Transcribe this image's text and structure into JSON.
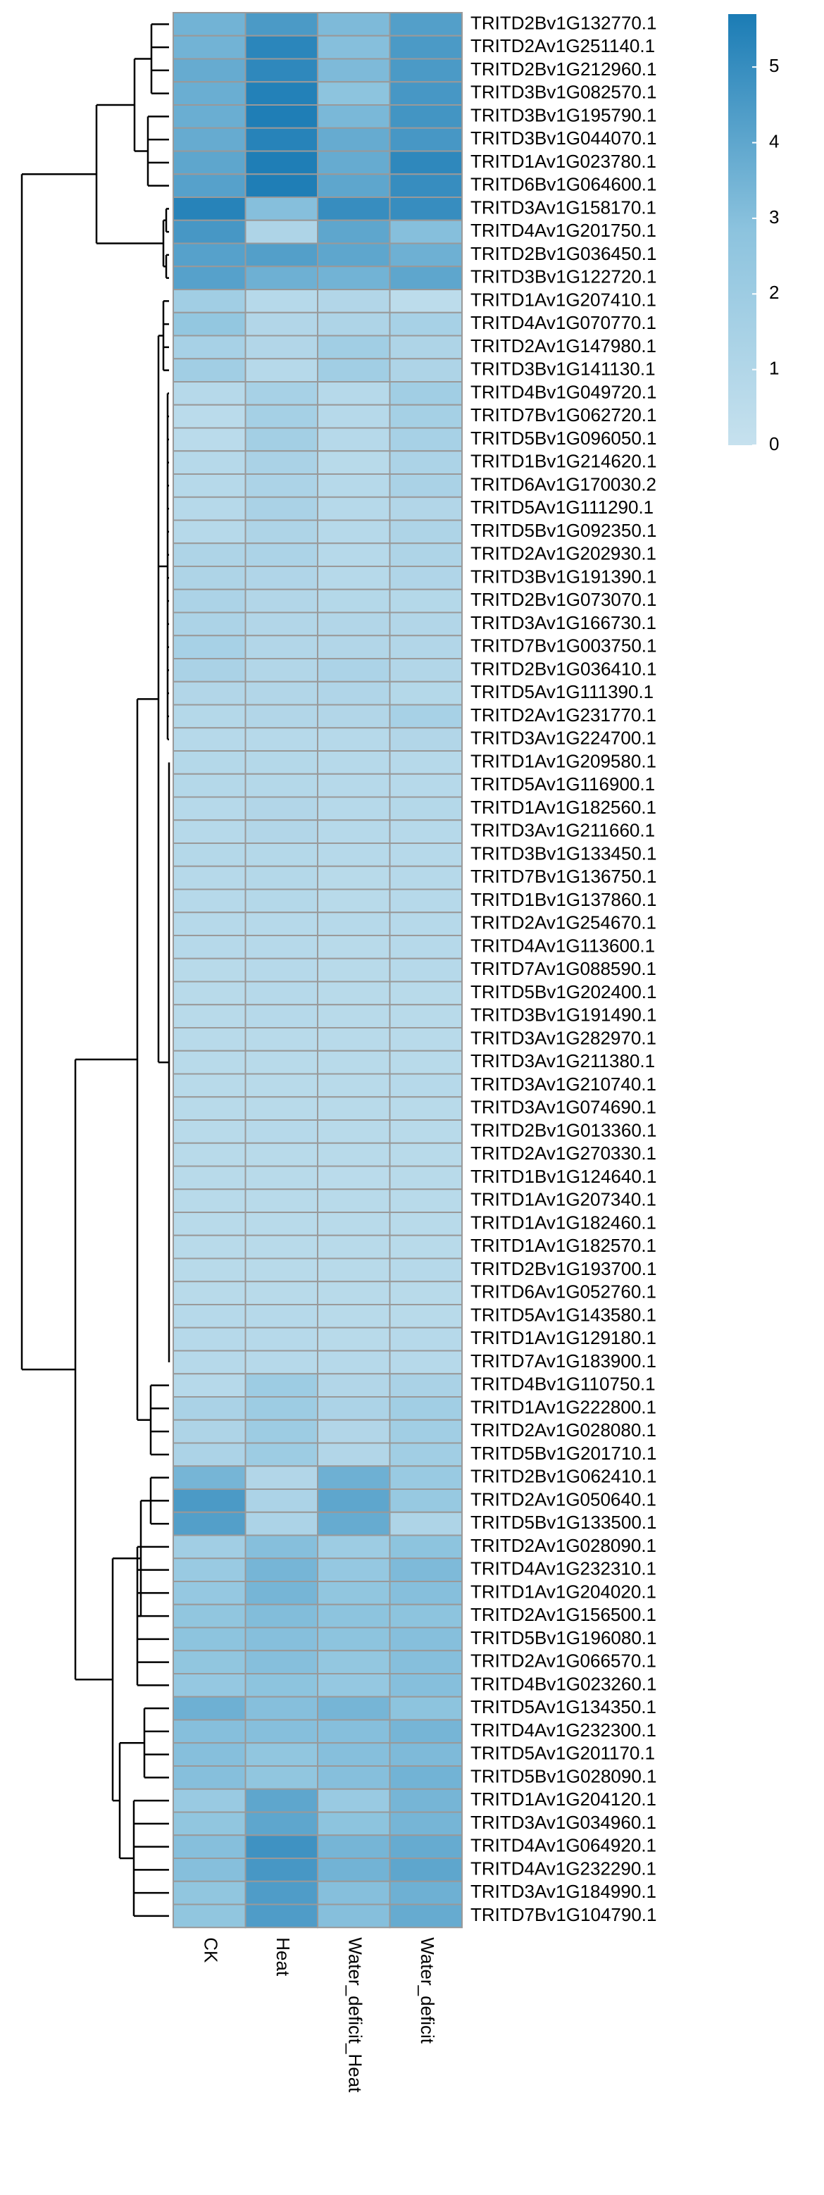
{
  "chart_data": {
    "type": "heatmap",
    "categories": [
      "CK",
      "Heat",
      "Water_deficit_Heat",
      "Water_deficit"
    ],
    "rows": [
      "TRITD2Bv1G132770.1",
      "TRITD2Av1G251140.1",
      "TRITD2Bv1G212960.1",
      "TRITD3Bv1G082570.1",
      "TRITD3Bv1G195790.1",
      "TRITD3Bv1G044070.1",
      "TRITD1Av1G023780.1",
      "TRITD6Bv1G064600.1",
      "TRITD3Av1G158170.1",
      "TRITD4Av1G201750.1",
      "TRITD2Bv1G036450.1",
      "TRITD3Bv1G122720.1",
      "TRITD1Av1G207410.1",
      "TRITD4Av1G070770.1",
      "TRITD2Av1G147980.1",
      "TRITD3Bv1G141130.1",
      "TRITD4Bv1G049720.1",
      "TRITD7Bv1G062720.1",
      "TRITD5Bv1G096050.1",
      "TRITD1Bv1G214620.1",
      "TRITD6Av1G170030.2",
      "TRITD5Av1G111290.1",
      "TRITD5Bv1G092350.1",
      "TRITD2Av1G202930.1",
      "TRITD3Bv1G191390.1",
      "TRITD2Bv1G073070.1",
      "TRITD3Av1G166730.1",
      "TRITD7Bv1G003750.1",
      "TRITD2Bv1G036410.1",
      "TRITD5Av1G111390.1",
      "TRITD2Av1G231770.1",
      "TRITD3Av1G224700.1",
      "TRITD1Av1G209580.1",
      "TRITD5Av1G116900.1",
      "TRITD1Av1G182560.1",
      "TRITD3Av1G211660.1",
      "TRITD3Bv1G133450.1",
      "TRITD7Bv1G136750.1",
      "TRITD1Bv1G137860.1",
      "TRITD2Av1G254670.1",
      "TRITD4Av1G113600.1",
      "TRITD7Av1G088590.1",
      "TRITD5Bv1G202400.1",
      "TRITD3Bv1G191490.1",
      "TRITD3Av1G282970.1",
      "TRITD3Av1G211380.1",
      "TRITD3Av1G210740.1",
      "TRITD3Av1G074690.1",
      "TRITD2Bv1G013360.1",
      "TRITD2Av1G270330.1",
      "TRITD1Bv1G124640.1",
      "TRITD1Av1G207340.1",
      "TRITD1Av1G182460.1",
      "TRITD1Av1G182570.1",
      "TRITD2Bv1G193700.1",
      "TRITD6Av1G052760.1",
      "TRITD5Av1G143580.1",
      "TRITD1Av1G129180.1",
      "TRITD7Av1G183900.1",
      "TRITD4Bv1G110750.1",
      "TRITD1Av1G222800.1",
      "TRITD2Av1G028080.1",
      "TRITD5Bv1G201710.1",
      "TRITD2Bv1G062410.1",
      "TRITD2Av1G050640.1",
      "TRITD5Bv1G133500.1",
      "TRITD2Av1G028090.1",
      "TRITD4Av1G232310.1",
      "TRITD1Av1G204020.1",
      "TRITD2Av1G156500.1",
      "TRITD5Bv1G196080.1",
      "TRITD2Av1G066570.1",
      "TRITD4Bv1G023260.1",
      "TRITD5Av1G134350.1",
      "TRITD4Av1G232300.1",
      "TRITD5Av1G201170.1",
      "TRITD5Bv1G028090.1",
      "TRITD1Av1G204120.1",
      "TRITD3Av1G034960.1",
      "TRITD4Av1G064920.1",
      "TRITD4Av1G232290.1",
      "TRITD3Av1G184990.1",
      "TRITD7Bv1G104790.1"
    ],
    "values": [
      [
        3.5,
        4.5,
        3.2,
        4.3
      ],
      [
        3.5,
        5.3,
        3.0,
        4.5
      ],
      [
        3.8,
        5.2,
        3.2,
        4.5
      ],
      [
        3.7,
        5.5,
        2.8,
        4.6
      ],
      [
        3.7,
        5.6,
        3.3,
        4.7
      ],
      [
        3.8,
        5.4,
        3.8,
        4.6
      ],
      [
        4.0,
        5.6,
        3.8,
        5.2
      ],
      [
        4.2,
        5.6,
        4.0,
        5.0
      ],
      [
        5.4,
        3.0,
        5.0,
        5.0
      ],
      [
        4.6,
        1.2,
        4.0,
        3.0
      ],
      [
        4.2,
        4.3,
        4.0,
        3.6
      ],
      [
        4.2,
        3.6,
        3.5,
        4.0
      ],
      [
        1.8,
        0.8,
        1.0,
        0.5
      ],
      [
        2.5,
        1.0,
        1.2,
        1.5
      ],
      [
        1.5,
        1.0,
        1.8,
        1.2
      ],
      [
        1.8,
        0.8,
        1.8,
        1.2
      ],
      [
        0.8,
        1.5,
        0.8,
        1.8
      ],
      [
        0.6,
        1.6,
        0.8,
        1.6
      ],
      [
        0.6,
        1.7,
        0.8,
        1.5
      ],
      [
        0.8,
        1.4,
        0.7,
        1.3
      ],
      [
        0.8,
        1.3,
        0.8,
        1.4
      ],
      [
        0.8,
        1.4,
        0.8,
        1.0
      ],
      [
        0.8,
        1.2,
        0.8,
        1.2
      ],
      [
        1.2,
        1.3,
        0.8,
        1.2
      ],
      [
        1.2,
        1.1,
        0.8,
        1.1
      ],
      [
        1.3,
        1.0,
        0.9,
        0.9
      ],
      [
        1.3,
        1.0,
        1.0,
        1.0
      ],
      [
        1.5,
        1.0,
        1.0,
        1.0
      ],
      [
        1.4,
        1.0,
        1.3,
        1.0
      ],
      [
        1.0,
        1.0,
        1.1,
        0.9
      ],
      [
        0.9,
        1.0,
        1.0,
        1.5
      ],
      [
        0.8,
        0.8,
        0.8,
        1.0
      ],
      [
        0.9,
        0.9,
        0.8,
        0.8
      ],
      [
        0.9,
        0.9,
        0.8,
        0.8
      ],
      [
        0.8,
        1.0,
        0.8,
        0.9
      ],
      [
        0.8,
        1.0,
        0.8,
        0.8
      ],
      [
        0.9,
        0.9,
        0.8,
        0.8
      ],
      [
        0.8,
        0.9,
        0.7,
        0.8
      ],
      [
        0.8,
        0.9,
        0.7,
        0.8
      ],
      [
        0.8,
        0.8,
        0.8,
        0.8
      ],
      [
        0.8,
        0.8,
        0.7,
        0.8
      ],
      [
        0.7,
        0.8,
        0.7,
        0.8
      ],
      [
        0.7,
        0.8,
        0.7,
        0.7
      ],
      [
        0.7,
        0.8,
        0.7,
        0.7
      ],
      [
        0.7,
        0.7,
        0.7,
        0.7
      ],
      [
        0.7,
        0.7,
        0.7,
        0.7
      ],
      [
        0.7,
        0.7,
        0.7,
        0.8
      ],
      [
        0.7,
        0.7,
        0.7,
        0.7
      ],
      [
        0.7,
        0.8,
        0.7,
        0.7
      ],
      [
        0.7,
        0.7,
        0.7,
        0.7
      ],
      [
        0.7,
        0.7,
        0.6,
        0.7
      ],
      [
        0.7,
        0.7,
        0.7,
        0.7
      ],
      [
        0.7,
        0.7,
        0.7,
        0.7
      ],
      [
        0.7,
        0.7,
        0.7,
        0.7
      ],
      [
        0.7,
        0.7,
        0.7,
        0.8
      ],
      [
        0.7,
        0.7,
        0.7,
        0.7
      ],
      [
        0.8,
        0.8,
        0.7,
        0.7
      ],
      [
        0.8,
        0.8,
        0.7,
        0.8
      ],
      [
        0.8,
        0.8,
        0.8,
        0.8
      ],
      [
        0.8,
        2.0,
        1.0,
        1.4
      ],
      [
        1.4,
        2.0,
        1.3,
        1.8
      ],
      [
        1.2,
        2.0,
        1.0,
        1.8
      ],
      [
        1.3,
        2.0,
        1.0,
        1.8
      ],
      [
        3.4,
        1.0,
        3.6,
        2.2
      ],
      [
        4.5,
        1.3,
        4.0,
        2.3
      ],
      [
        4.3,
        1.3,
        3.8,
        1.2
      ],
      [
        1.8,
        3.0,
        2.0,
        2.8
      ],
      [
        2.2,
        3.4,
        2.4,
        3.2
      ],
      [
        2.4,
        3.4,
        2.6,
        3.0
      ],
      [
        2.6,
        3.1,
        2.8,
        2.8
      ],
      [
        2.8,
        3.0,
        2.8,
        3.0
      ],
      [
        2.6,
        3.0,
        2.5,
        3.0
      ],
      [
        2.4,
        2.8,
        2.4,
        3.0
      ],
      [
        3.6,
        3.0,
        3.4,
        2.8
      ],
      [
        3.0,
        3.0,
        3.0,
        3.4
      ],
      [
        3.0,
        2.6,
        3.0,
        3.2
      ],
      [
        3.0,
        2.6,
        3.0,
        3.5
      ],
      [
        2.2,
        4.0,
        2.2,
        3.4
      ],
      [
        2.6,
        4.0,
        2.8,
        3.4
      ],
      [
        3.0,
        4.8,
        3.4,
        3.8
      ],
      [
        3.0,
        4.6,
        3.5,
        4.0
      ],
      [
        2.6,
        4.4,
        3.0,
        3.6
      ],
      [
        2.6,
        4.4,
        3.0,
        3.8
      ]
    ],
    "zlim": [
      0,
      5.7
    ],
    "colorbar_ticks": [
      0,
      1,
      2,
      3,
      4,
      5
    ],
    "colors": [
      "#c6e1ee",
      "#8cc3de",
      "#1b7cb5"
    ],
    "border_color": "#999999"
  }
}
